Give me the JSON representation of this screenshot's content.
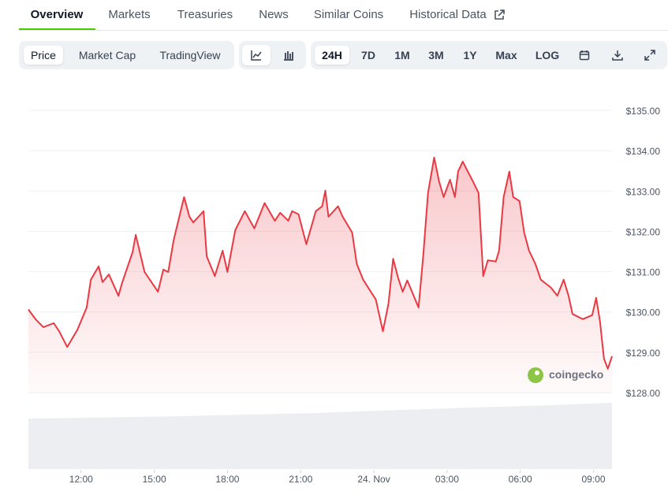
{
  "tabs": {
    "items": [
      "Overview",
      "Markets",
      "Treasuries",
      "News",
      "Similar Coins",
      "Historical Data"
    ]
  },
  "toolbar": {
    "views": [
      "Price",
      "Market Cap",
      "TradingView"
    ],
    "ranges": [
      "24H",
      "7D",
      "1M",
      "3M",
      "1Y",
      "Max",
      "LOG"
    ]
  },
  "watermark": "coingecko",
  "chart_data": {
    "type": "line",
    "color": "#ea3943",
    "grid": true,
    "x": [
      9.84,
      10.13,
      10.45,
      10.88,
      11.1,
      11.43,
      11.85,
      12.23,
      12.4,
      12.72,
      12.88,
      13.14,
      13.53,
      13.69,
      14.11,
      14.24,
      14.6,
      15.15,
      15.37,
      15.57,
      15.79,
      16.05,
      16.22,
      16.44,
      16.6,
      17.02,
      17.15,
      17.48,
      17.8,
      18.0,
      18.32,
      18.71,
      19.1,
      19.52,
      19.94,
      20.16,
      20.49,
      20.65,
      20.91,
      21.23,
      21.62,
      21.88,
      22.01,
      22.14,
      22.53,
      22.72,
      23.11,
      23.3,
      23.56,
      24.08,
      24.37,
      24.6,
      24.79,
      24.99,
      25.18,
      25.37,
      25.83,
      26.02,
      26.22,
      26.47,
      26.67,
      26.86,
      27.12,
      27.32,
      27.45,
      27.64,
      28.09,
      28.29,
      28.48,
      28.67,
      29.0,
      29.13,
      29.32,
      29.55,
      29.71,
      29.97,
      30.16,
      30.36,
      30.62,
      30.84,
      31.26,
      31.52,
      31.78,
      31.98,
      32.14,
      32.56,
      32.95,
      33.11,
      33.27,
      33.43,
      33.59,
      33.76
    ],
    "values": [
      130.06,
      129.82,
      129.62,
      129.72,
      129.52,
      129.13,
      129.56,
      130.11,
      130.8,
      131.13,
      130.74,
      130.93,
      130.4,
      130.74,
      131.48,
      131.91,
      130.99,
      130.5,
      131.05,
      130.99,
      131.77,
      132.42,
      132.85,
      132.36,
      132.22,
      132.5,
      131.38,
      130.89,
      131.52,
      130.99,
      132.03,
      132.5,
      132.07,
      132.7,
      132.26,
      132.46,
      132.26,
      132.5,
      132.42,
      131.68,
      132.5,
      132.62,
      133.01,
      132.36,
      132.62,
      132.36,
      131.97,
      131.19,
      130.8,
      130.31,
      129.52,
      130.21,
      131.32,
      130.85,
      130.5,
      130.78,
      130.11,
      131.38,
      132.95,
      133.83,
      133.24,
      132.85,
      133.28,
      132.85,
      133.48,
      133.73,
      133.2,
      132.95,
      130.89,
      131.28,
      131.25,
      131.52,
      132.85,
      133.48,
      132.85,
      132.75,
      131.97,
      131.52,
      131.19,
      130.8,
      130.6,
      130.4,
      130.8,
      130.4,
      129.95,
      129.82,
      129.92,
      130.35,
      129.76,
      128.84,
      128.59,
      128.9
    ],
    "xlim": [
      9.84,
      33.76
    ],
    "xticks": [
      {
        "value": 12,
        "label": "12:00"
      },
      {
        "value": 15,
        "label": "15:00"
      },
      {
        "value": 18,
        "label": "18:00"
      },
      {
        "value": 21,
        "label": "21:00"
      },
      {
        "value": 24,
        "label": "24. Nov"
      },
      {
        "value": 27,
        "label": "03:00"
      },
      {
        "value": 30,
        "label": "06:00"
      },
      {
        "value": 33,
        "label": "09:00"
      }
    ],
    "ylim": [
      128,
      135
    ],
    "yticks": [
      {
        "value": 128,
        "label": "$128.00"
      },
      {
        "value": 129,
        "label": "$129.00"
      },
      {
        "value": 130,
        "label": "$130.00"
      },
      {
        "value": 131,
        "label": "$131.00"
      },
      {
        "value": 132,
        "label": "$132.00"
      },
      {
        "value": 133,
        "label": "$133.00"
      },
      {
        "value": 134,
        "label": "$134.00"
      },
      {
        "value": 135,
        "label": "$135.00"
      }
    ]
  }
}
